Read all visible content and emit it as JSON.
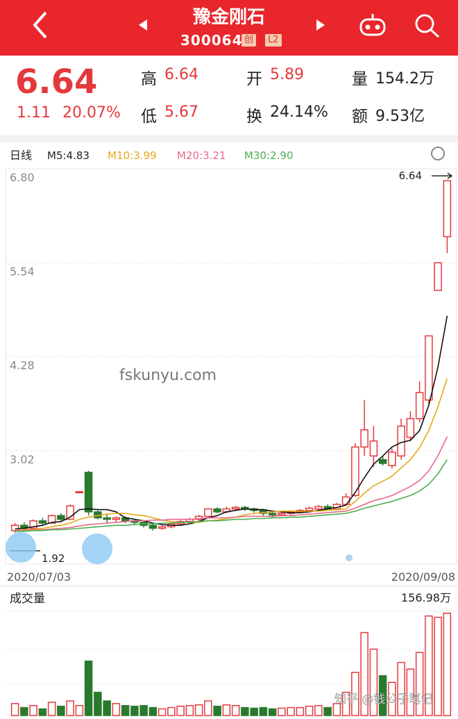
{
  "header": {
    "title": "豫金刚石",
    "code": "300064",
    "badges": [
      "创",
      "L2"
    ]
  },
  "quote": {
    "price": "6.64",
    "change": "1.11",
    "change_pct": "20.07%",
    "stats": [
      {
        "label": "高",
        "value": "6.64"
      },
      {
        "label": "开",
        "value": "5.89"
      },
      {
        "label": "量",
        "value": "154.2万"
      },
      {
        "label": "低",
        "value": "5.67"
      },
      {
        "label": "换",
        "value": "24.14%"
      },
      {
        "label": "额",
        "value": "9.53亿"
      }
    ]
  },
  "watermark": "fskunyu.com",
  "footer_credit": "知乎 @钱公子笔记",
  "chart_data": [
    {
      "type": "candlestick",
      "period": "日线",
      "categories": [
        "2020/07/03",
        null,
        null,
        null,
        null,
        null,
        null,
        null,
        null,
        null,
        null,
        null,
        null,
        null,
        null,
        null,
        null,
        null,
        null,
        null,
        null,
        null,
        null,
        null,
        null,
        null,
        null,
        null,
        null,
        null,
        null,
        null,
        null,
        null,
        null,
        null,
        null,
        null,
        null,
        null,
        null,
        null,
        null,
        null,
        null,
        null,
        null,
        "2020/09/08"
      ],
      "open": [
        1.95,
        2.02,
        1.98,
        2.08,
        2.05,
        2.15,
        2.1,
        2.46,
        2.73,
        2.2,
        2.12,
        2.1,
        2.12,
        2.08,
        2.06,
        2.02,
        1.98,
        2.0,
        2.04,
        2.07,
        2.1,
        2.14,
        2.24,
        2.2,
        2.24,
        2.26,
        2.24,
        2.22,
        2.18,
        2.16,
        2.18,
        2.2,
        2.22,
        2.24,
        2.27,
        2.24,
        2.3,
        2.42,
        3.07,
        2.95,
        2.9,
        2.82,
        2.95,
        3.2,
        3.45,
        3.7,
        5.17,
        5.89
      ],
      "close": [
        2.02,
        1.98,
        2.08,
        2.05,
        2.15,
        2.1,
        2.28,
        2.47,
        2.2,
        2.12,
        2.1,
        2.12,
        2.08,
        2.06,
        2.02,
        1.98,
        2.0,
        2.04,
        2.07,
        2.1,
        2.14,
        2.24,
        2.2,
        2.24,
        2.26,
        2.24,
        2.22,
        2.18,
        2.16,
        2.18,
        2.2,
        2.22,
        2.25,
        2.27,
        2.24,
        2.3,
        2.4,
        3.07,
        3.3,
        3.15,
        2.85,
        3.0,
        3.35,
        3.45,
        3.8,
        4.56,
        5.54,
        6.64
      ],
      "high": [
        2.05,
        2.06,
        2.1,
        2.12,
        2.16,
        2.18,
        2.3,
        2.48,
        2.75,
        2.22,
        2.18,
        2.14,
        2.14,
        2.1,
        2.08,
        2.05,
        2.02,
        2.06,
        2.09,
        2.12,
        2.16,
        2.25,
        2.26,
        2.27,
        2.28,
        2.28,
        2.26,
        2.24,
        2.2,
        2.2,
        2.22,
        2.24,
        2.27,
        2.29,
        2.3,
        2.32,
        2.45,
        3.12,
        3.7,
        3.35,
        2.95,
        3.05,
        3.45,
        3.55,
        3.95,
        4.56,
        5.54,
        6.64
      ],
      "low": [
        1.92,
        1.96,
        1.97,
        2.03,
        2.04,
        2.08,
        2.09,
        2.45,
        2.15,
        2.1,
        2.05,
        2.06,
        2.05,
        2.02,
        1.99,
        1.95,
        1.96,
        1.98,
        2.02,
        2.05,
        2.08,
        2.12,
        2.18,
        2.18,
        2.22,
        2.21,
        2.19,
        2.15,
        2.12,
        2.14,
        2.16,
        2.18,
        2.2,
        2.22,
        2.22,
        2.22,
        2.28,
        2.4,
        2.95,
        2.8,
        2.82,
        2.78,
        2.9,
        3.15,
        3.4,
        3.65,
        5.17,
        5.67
      ],
      "series": [
        {
          "name": "M5:4.83",
          "color": "#111111",
          "values": [
            1.97,
            1.98,
            2.0,
            2.02,
            2.06,
            2.07,
            2.13,
            2.23,
            2.24,
            2.23,
            2.23,
            2.2,
            2.12,
            2.1,
            2.08,
            2.05,
            2.03,
            2.02,
            2.02,
            2.04,
            2.07,
            2.12,
            2.15,
            2.2,
            2.22,
            2.24,
            2.23,
            2.23,
            2.21,
            2.2,
            2.19,
            2.19,
            2.2,
            2.22,
            2.24,
            2.26,
            2.29,
            2.46,
            2.66,
            2.84,
            2.95,
            3.07,
            3.13,
            3.16,
            3.29,
            3.63,
            4.14,
            4.83
          ]
        },
        {
          "name": "M10:3.99",
          "color": "#e6a817",
          "values": [
            1.95,
            1.96,
            1.97,
            1.98,
            2.0,
            2.02,
            2.05,
            2.1,
            2.13,
            2.15,
            2.17,
            2.18,
            2.18,
            2.16,
            2.15,
            2.12,
            2.09,
            2.07,
            2.06,
            2.06,
            2.06,
            2.08,
            2.09,
            2.11,
            2.13,
            2.16,
            2.18,
            2.19,
            2.2,
            2.21,
            2.21,
            2.21,
            2.21,
            2.21,
            2.22,
            2.23,
            2.24,
            2.34,
            2.45,
            2.55,
            2.61,
            2.68,
            2.79,
            2.9,
            3.06,
            3.29,
            3.61,
            3.99
          ]
        },
        {
          "name": "M20:3.21",
          "color": "#e8678a",
          "values": [
            1.95,
            1.95,
            1.96,
            1.96,
            1.97,
            1.98,
            1.99,
            2.01,
            2.03,
            2.04,
            2.05,
            2.06,
            2.07,
            2.08,
            2.08,
            2.09,
            2.09,
            2.1,
            2.1,
            2.1,
            2.11,
            2.12,
            2.12,
            2.12,
            2.13,
            2.14,
            2.14,
            2.14,
            2.14,
            2.15,
            2.15,
            2.16,
            2.17,
            2.18,
            2.19,
            2.2,
            2.21,
            2.25,
            2.3,
            2.35,
            2.38,
            2.42,
            2.48,
            2.54,
            2.62,
            2.75,
            2.95,
            3.21
          ]
        },
        {
          "name": "M30:2.90",
          "color": "#4caf50",
          "values": [
            1.94,
            1.94,
            1.95,
            1.95,
            1.96,
            1.96,
            1.97,
            1.98,
            1.99,
            2.0,
            2.01,
            2.02,
            2.02,
            2.03,
            2.04,
            2.04,
            2.05,
            2.05,
            2.06,
            2.06,
            2.07,
            2.08,
            2.08,
            2.09,
            2.1,
            2.1,
            2.11,
            2.11,
            2.12,
            2.12,
            2.13,
            2.13,
            2.14,
            2.15,
            2.16,
            2.17,
            2.18,
            2.21,
            2.25,
            2.28,
            2.31,
            2.34,
            2.38,
            2.42,
            2.48,
            2.57,
            2.71,
            2.9
          ]
        }
      ],
      "ylim": [
        1.5,
        6.8
      ],
      "yticks": [
        {
          "value": 6.8,
          "label": "6.80"
        },
        5.54,
        4.28,
        3.02
      ],
      "grid": true,
      "up_color": "#e4393c",
      "down_color": "#2a7a2e",
      "high_marker": 6.64,
      "low_marker": 1.92
    },
    {
      "type": "bar",
      "title": "成交量",
      "values": [
        18,
        12,
        15,
        10,
        20,
        14,
        22,
        15,
        82,
        35,
        22,
        18,
        15,
        14,
        15,
        12,
        10,
        12,
        14,
        15,
        16,
        22,
        14,
        16,
        15,
        12,
        11,
        12,
        10,
        11,
        12,
        12,
        14,
        15,
        12,
        18,
        35,
        65,
        125,
        100,
        60,
        50,
        80,
        70,
        95,
        150,
        148,
        154.2
      ],
      "ylim": [
        0,
        156.98
      ],
      "yticks": [
        {
          "value": 156.98,
          "label": "156.98万"
        }
      ],
      "grid": true
    }
  ]
}
